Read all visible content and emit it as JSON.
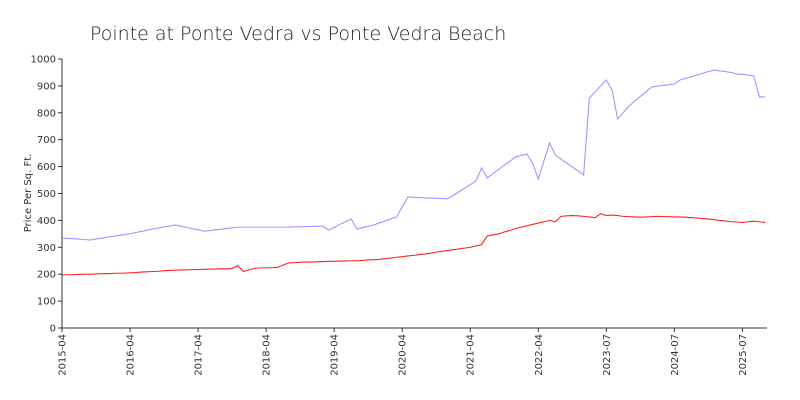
{
  "chart_data": {
    "type": "line",
    "title": "Pointe at Ponte Vedra vs Ponte Vedra Beach",
    "y_label": "Price Per Sq. Ft.",
    "categories": [
      "2015-04",
      null,
      null,
      null,
      null,
      null,
      null,
      null,
      null,
      null,
      null,
      null,
      "2016-04",
      null,
      null,
      null,
      null,
      null,
      null,
      null,
      null,
      null,
      null,
      null,
      "2017-04",
      null,
      null,
      null,
      null,
      null,
      null,
      null,
      null,
      null,
      null,
      null,
      "2018-04",
      null,
      null,
      null,
      null,
      null,
      null,
      null,
      null,
      null,
      null,
      null,
      "2019-04",
      null,
      null,
      null,
      null,
      null,
      null,
      null,
      null,
      null,
      null,
      null,
      "2020-04",
      null,
      null,
      null,
      null,
      null,
      null,
      null,
      null,
      null,
      null,
      null,
      "2021-04",
      null,
      null,
      null,
      null,
      null,
      null,
      null,
      null,
      null,
      null,
      null,
      "2022-04",
      null,
      null,
      null,
      null,
      null,
      null,
      null,
      null,
      null,
      null,
      null,
      "2023-07",
      null,
      null,
      null,
      null,
      null,
      null,
      null,
      null,
      null,
      null,
      null,
      "2024-07",
      null,
      null,
      null,
      null,
      null,
      null,
      null,
      null,
      null,
      null,
      null,
      "2025-07",
      null,
      null,
      null,
      null
    ],
    "series": [
      {
        "color": "#9999ff",
        "values": [
          335,
          333,
          332,
          330,
          329,
          327,
          331,
          334,
          338,
          341,
          344,
          347,
          350,
          355,
          359,
          364,
          368,
          372,
          376,
          379,
          383,
          378,
          374,
          369,
          365,
          360,
          362,
          365,
          367,
          370,
          372,
          375,
          375,
          375,
          375,
          375,
          375,
          375,
          375,
          375,
          375,
          376,
          376,
          377,
          378,
          378,
          379,
          364,
          374,
          385,
          395,
          405,
          368,
          373,
          378,
          383,
          391,
          398,
          406,
          413,
          450,
          487,
          486,
          485,
          484,
          483,
          482,
          481,
          480,
          493,
          506,
          520,
          533,
          546,
          595,
          558,
          574,
          589,
          605,
          620,
          636,
          642,
          647,
          613,
          554,
          621,
          688,
          643,
          628,
          613,
          599,
          584,
          569,
          855,
          877,
          900,
          922,
          885,
          777,
          801,
          825,
          843,
          861,
          878,
          896,
          899,
          902,
          904,
          907,
          922,
          928,
          934,
          940,
          947,
          953,
          959,
          956,
          953,
          950,
          944,
          943,
          940,
          937,
          859,
          859
        ]
      },
      {
        "color": "#ff2222",
        "values": [
          197,
          198,
          198,
          199,
          200,
          200,
          201,
          202,
          202,
          203,
          204,
          204,
          205,
          206,
          208,
          209,
          210,
          211,
          213,
          214,
          215,
          216,
          216,
          217,
          217,
          218,
          219,
          219,
          220,
          220,
          221,
          232,
          210,
          216,
          222,
          223,
          224,
          224,
          225,
          234,
          242,
          243,
          244,
          245,
          245,
          246,
          247,
          248,
          248,
          249,
          249,
          250,
          250,
          251,
          253,
          254,
          255,
          258,
          260,
          263,
          265,
          268,
          270,
          273,
          275,
          278,
          282,
          285,
          288,
          291,
          294,
          297,
          300,
          305,
          310,
          342,
          346,
          350,
          357,
          363,
          370,
          375,
          380,
          385,
          390,
          395,
          400,
          395,
          415,
          417,
          418,
          417,
          415,
          413,
          410,
          425,
          418,
          420,
          418,
          415,
          414,
          413,
          412,
          413,
          414,
          415,
          414,
          414,
          413,
          413,
          412,
          410,
          409,
          407,
          405,
          403,
          400,
          398,
          395,
          394,
          392,
          395,
          397,
          395,
          392
        ]
      }
    ],
    "ylim": [
      0,
      1000
    ],
    "yticks": [
      0,
      100,
      200,
      300,
      400,
      500,
      600,
      700,
      800,
      900,
      1000
    ]
  }
}
